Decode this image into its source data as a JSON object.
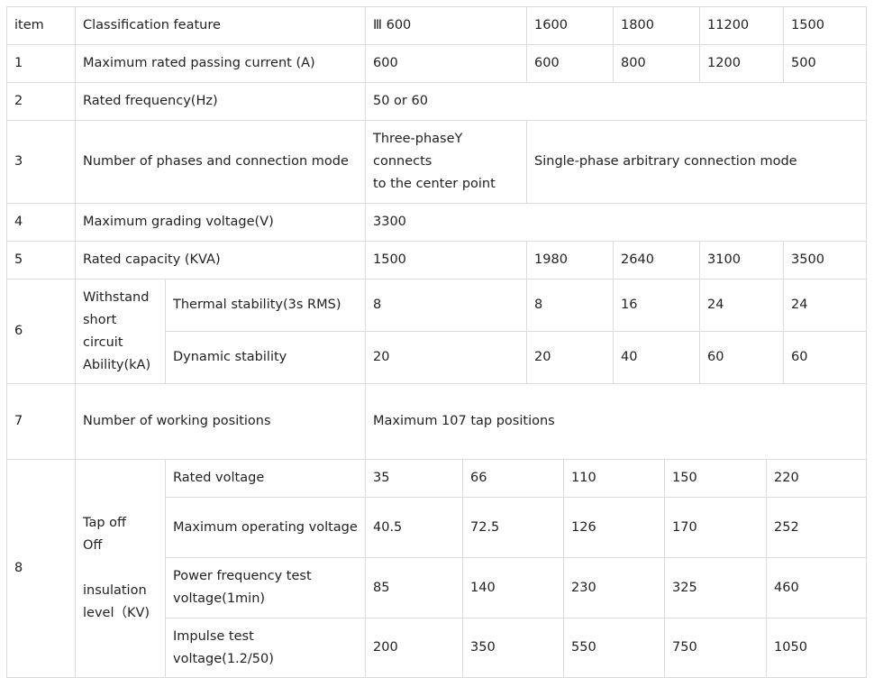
{
  "table": {
    "header": [
      "item",
      "Classification feature",
      "Ⅲ 600",
      "1600",
      "1800",
      "11200",
      "1500"
    ],
    "rows": [
      [
        "1",
        "Maximum rated passing current (A)",
        "600",
        "600",
        "800",
        "1200",
        "500"
      ],
      [
        "2",
        "Rated frequency(Hz)",
        "50 or 60"
      ],
      [
        "3",
        "Number of phases and connection mode",
        "Three-phaseY\nconnects\nto the center point",
        "Single-phase arbitrary connection mode"
      ],
      [
        "4",
        "Maximum grading voltage(V)",
        "3300"
      ],
      [
        "5",
        "Rated capacity (KVA)",
        "1500",
        "1980",
        "2640",
        "3100",
        "3500"
      ],
      [
        "6",
        "Withstand\nshort\ncircuit\nAbility(kA)",
        "Thermal stability(3s RMS)",
        "8",
        "8",
        "16",
        "24",
        "24"
      ],
      [
        "Dynamic stability",
        "20",
        "20",
        "40",
        "60",
        "60"
      ],
      [
        "7",
        "Number of working positions",
        "Maximum 107 tap positions"
      ],
      [
        "8",
        "Tap off\nOff\n\ninsulation\nlevel（KV)",
        "Rated voltage",
        "35",
        "66",
        "110",
        "150",
        "220"
      ],
      [
        "Maximum operating voltage",
        "40.5",
        "72.5",
        "126",
        "170",
        "252"
      ],
      [
        "Power frequency test voltage(1min)",
        "85",
        "140",
        "230",
        "325",
        "460"
      ],
      [
        "Impulse test voltage(1.2/50)",
        "200",
        "350",
        "550",
        "750",
        "1050"
      ]
    ]
  }
}
